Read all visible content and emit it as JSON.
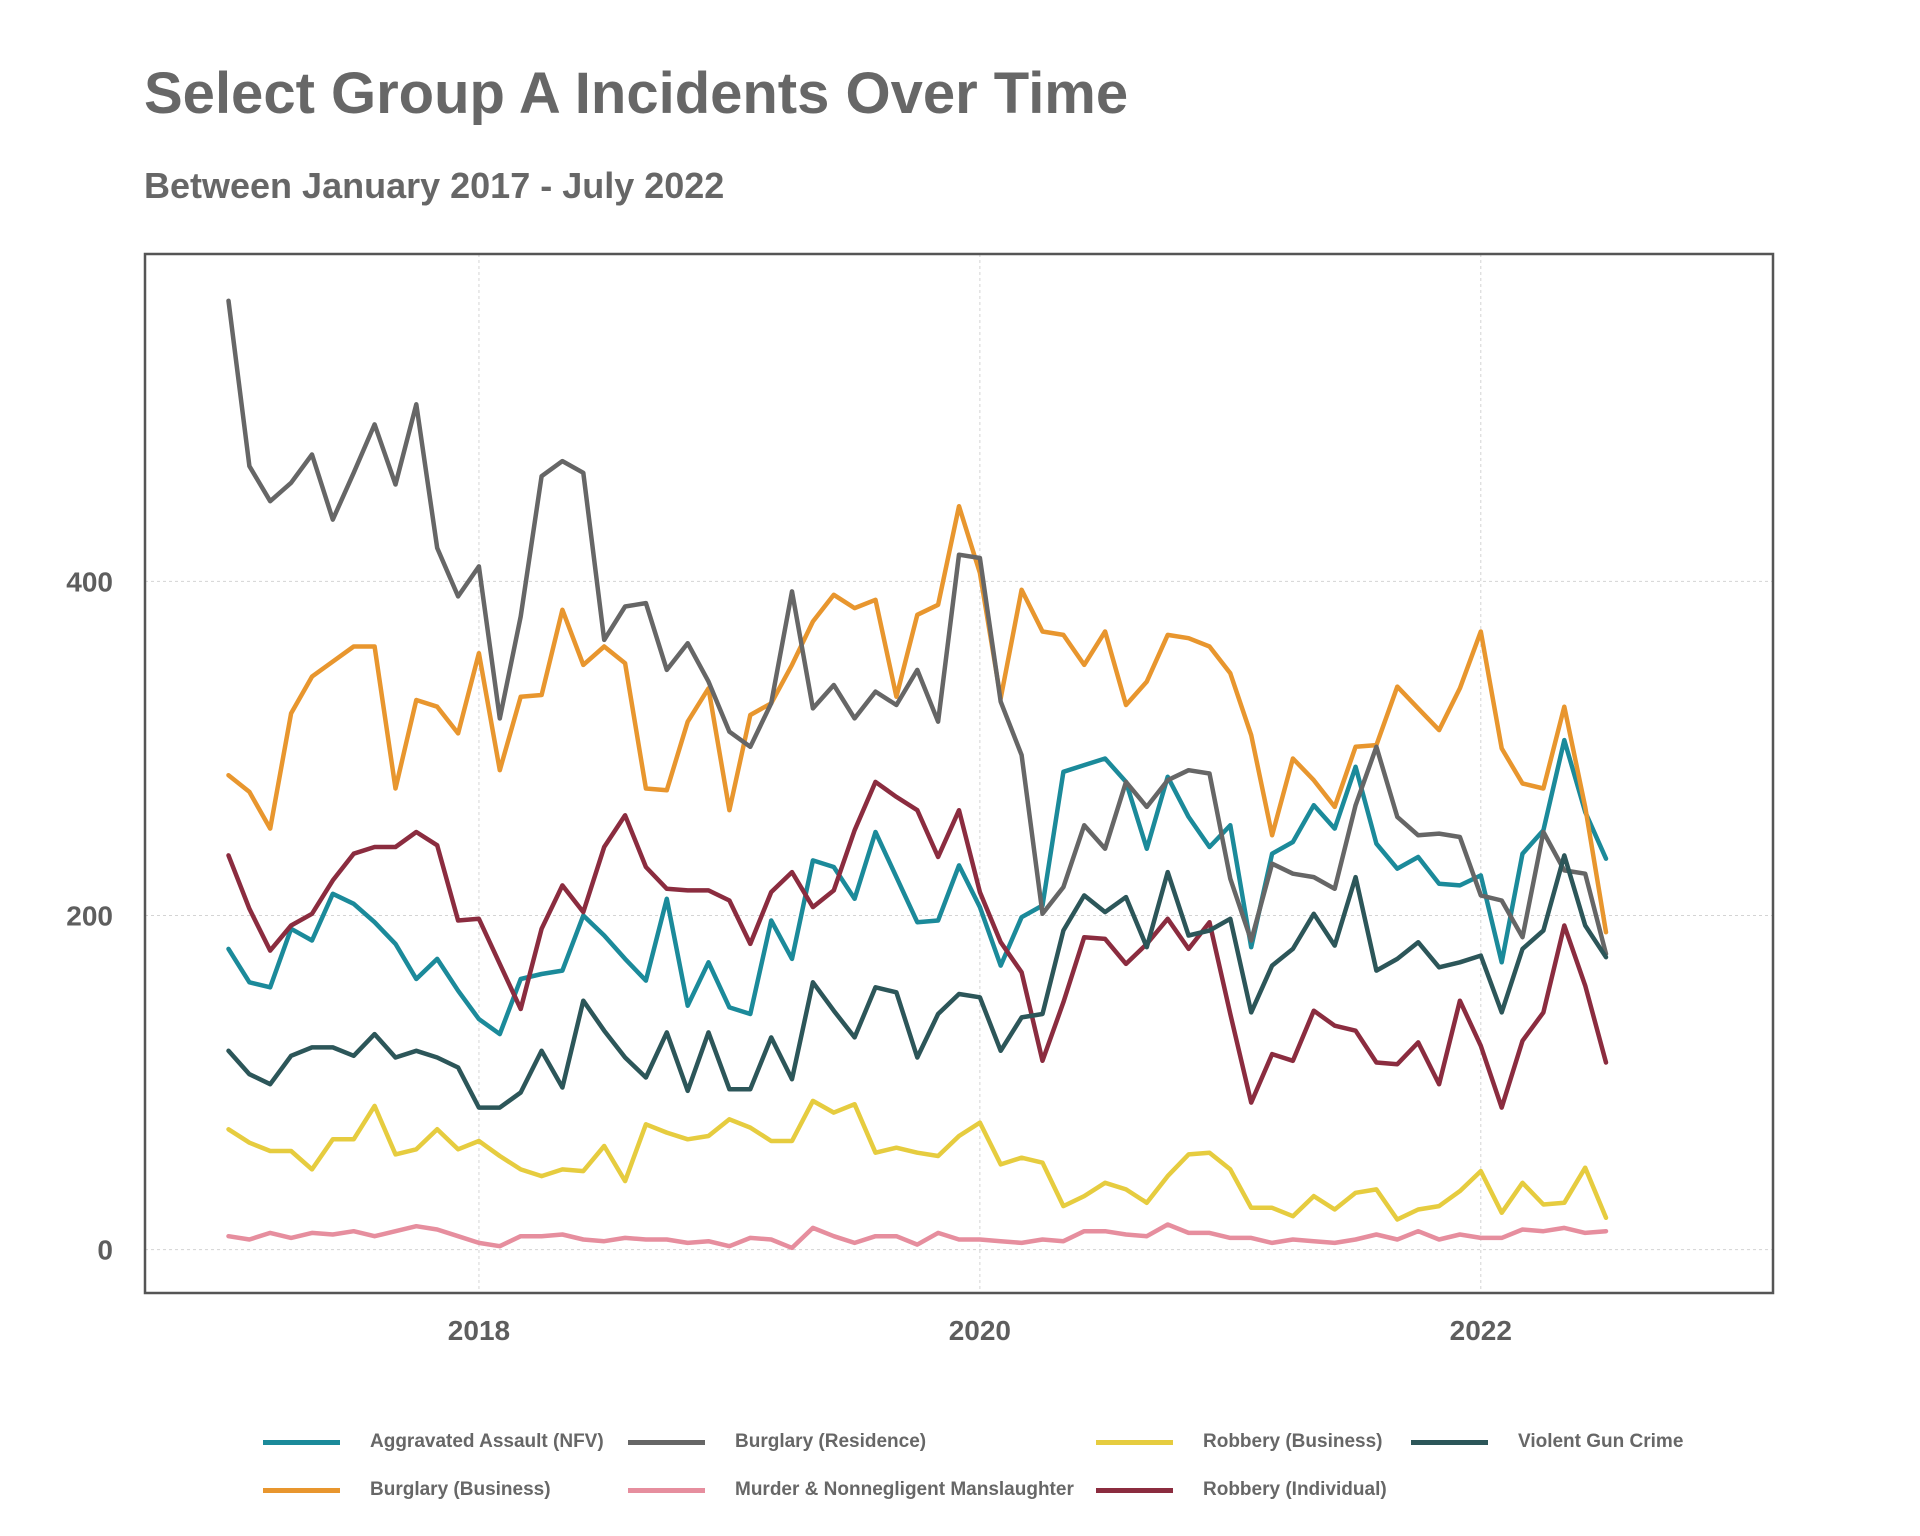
{
  "chart_data": {
    "type": "line",
    "title": "Select Group A Incidents Over Time",
    "subtitle": "Between January 2017 - July 2022",
    "xlabel": "",
    "ylabel": "",
    "x_start": "2017-01",
    "x_end": "2022-07",
    "xlim": [
      "2016-09",
      "2023-03"
    ],
    "ylim": [
      -26,
      596
    ],
    "x_ticks": [
      {
        "value": "2018-01",
        "label": "2018"
      },
      {
        "value": "2020-01",
        "label": "2020"
      },
      {
        "value": "2022-01",
        "label": "2022"
      }
    ],
    "y_ticks": [
      {
        "value": 0,
        "label": "0"
      },
      {
        "value": 200,
        "label": "200"
      },
      {
        "value": 400,
        "label": "400"
      }
    ],
    "grid": true,
    "legend_position": "bottom",
    "series": [
      {
        "name": "Aggravated Assault (NFV)",
        "color": "#1b8a9a",
        "values": [
          180,
          160,
          157,
          192,
          185,
          213,
          207,
          196,
          183,
          162,
          174,
          155,
          138,
          129,
          162,
          165,
          167,
          200,
          188,
          174,
          161,
          210,
          146,
          172,
          145,
          141,
          197,
          174,
          233,
          229,
          210,
          250,
          223,
          196,
          197,
          230,
          205,
          170,
          199,
          206,
          286,
          290,
          294,
          280,
          240,
          283,
          259,
          241,
          254,
          181,
          237,
          244,
          266,
          252,
          289,
          243,
          228,
          235,
          219,
          218,
          224,
          172,
          237,
          251,
          305,
          262,
          234
        ]
      },
      {
        "name": "Burglary (Business)",
        "color": "#e8962e",
        "values": [
          284,
          274,
          252,
          321,
          343,
          352,
          361,
          361,
          276,
          329,
          325,
          309,
          357,
          287,
          331,
          332,
          383,
          350,
          361,
          351,
          276,
          275,
          316,
          336,
          263,
          320,
          327,
          350,
          376,
          392,
          384,
          389,
          331,
          380,
          386,
          445,
          405,
          330,
          395,
          370,
          368,
          350,
          370,
          326,
          340,
          368,
          366,
          361,
          345,
          308,
          248,
          294,
          281,
          265,
          301,
          302,
          337,
          324,
          311,
          336,
          370,
          300,
          279,
          276,
          325,
          265,
          190
        ]
      },
      {
        "name": "Burglary (Residence)",
        "color": "#666666",
        "values": [
          568,
          469,
          448,
          459,
          476,
          437,
          465,
          494,
          458,
          506,
          420,
          391,
          409,
          318,
          379,
          463,
          472,
          465,
          365,
          385,
          387,
          347,
          363,
          340,
          310,
          301,
          327,
          394,
          324,
          338,
          318,
          334,
          326,
          347,
          316,
          416,
          414,
          328,
          296,
          201,
          217,
          254,
          240,
          280,
          265,
          281,
          287,
          285,
          222,
          185,
          231,
          225,
          223,
          216,
          266,
          301,
          259,
          248,
          249,
          247,
          212,
          209,
          187,
          250,
          227,
          225,
          177
        ]
      },
      {
        "name": "Murder & Nonnegligent Manslaughter",
        "color": "#e68e9e",
        "values": [
          8,
          6,
          10,
          7,
          10,
          9,
          11,
          8,
          11,
          14,
          12,
          8,
          4,
          2,
          8,
          8,
          9,
          6,
          5,
          7,
          6,
          6,
          4,
          5,
          2,
          7,
          6,
          1,
          13,
          8,
          4,
          8,
          8,
          3,
          10,
          6,
          6,
          5,
          4,
          6,
          5,
          11,
          11,
          9,
          8,
          15,
          10,
          10,
          7,
          7,
          4,
          6,
          5,
          4,
          6,
          9,
          6,
          11,
          6,
          9,
          7,
          7,
          12,
          11,
          13,
          10,
          11
        ]
      },
      {
        "name": "Robbery (Business)",
        "color": "#e6cc3f",
        "values": [
          72,
          64,
          59,
          59,
          48,
          66,
          66,
          86,
          57,
          60,
          72,
          60,
          65,
          56,
          48,
          44,
          48,
          47,
          62,
          41,
          75,
          70,
          66,
          68,
          78,
          73,
          65,
          65,
          89,
          82,
          87,
          58,
          61,
          58,
          56,
          68,
          76,
          51,
          55,
          52,
          26,
          32,
          40,
          36,
          28,
          44,
          57,
          58,
          48,
          25,
          25,
          20,
          32,
          24,
          34,
          36,
          18,
          24,
          26,
          35,
          47,
          22,
          40,
          27,
          28,
          49,
          19
        ]
      },
      {
        "name": "Robbery (Individual)",
        "color": "#8b2c3f",
        "values": [
          236,
          204,
          179,
          194,
          201,
          221,
          237,
          241,
          241,
          250,
          242,
          197,
          198,
          171,
          144,
          192,
          218,
          202,
          241,
          260,
          229,
          216,
          215,
          215,
          209,
          183,
          214,
          226,
          205,
          215,
          251,
          280,
          271,
          263,
          235,
          263,
          214,
          184,
          166,
          113,
          148,
          187,
          186,
          171,
          183,
          198,
          180,
          196,
          141,
          88,
          117,
          113,
          143,
          134,
          131,
          112,
          111,
          124,
          99,
          149,
          122,
          85,
          125,
          142,
          194,
          158,
          112
        ]
      },
      {
        "name": "Violent Gun Crime",
        "color": "#2c5659",
        "values": [
          119,
          105,
          99,
          116,
          121,
          121,
          116,
          129,
          115,
          119,
          115,
          109,
          85,
          85,
          94,
          119,
          97,
          149,
          131,
          115,
          103,
          130,
          95,
          130,
          96,
          96,
          127,
          102,
          160,
          143,
          127,
          157,
          154,
          115,
          141,
          153,
          151,
          119,
          139,
          141,
          191,
          212,
          202,
          211,
          181,
          226,
          188,
          191,
          198,
          142,
          170,
          180,
          201,
          182,
          223,
          167,
          174,
          184,
          169,
          172,
          176,
          142,
          180,
          191,
          236,
          194,
          175
        ]
      }
    ]
  }
}
